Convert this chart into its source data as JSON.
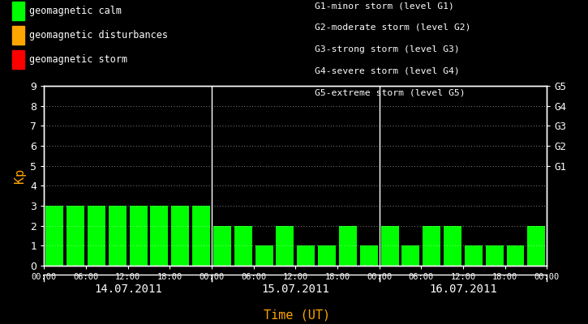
{
  "background_color": "#000000",
  "plot_bg_color": "#000000",
  "bar_color_calm": "#00ff00",
  "bar_color_disturbance": "#ffa500",
  "bar_color_storm": "#ff0000",
  "text_color": "#ffffff",
  "xlabel_color": "#ffa500",
  "ylabel_color": "#ffa500",
  "xlabel": "Time (UT)",
  "ylabel": "Kp",
  "ylim": [
    0,
    9
  ],
  "yticks": [
    0,
    1,
    2,
    3,
    4,
    5,
    6,
    7,
    8,
    9
  ],
  "days": [
    "14.07.2011",
    "15.07.2011",
    "16.07.2011"
  ],
  "kp_values": [
    [
      3,
      3,
      3,
      3,
      3,
      3,
      3,
      3
    ],
    [
      2,
      2,
      1,
      2,
      1,
      1,
      2,
      1
    ],
    [
      2,
      1,
      2,
      2,
      1,
      1,
      1,
      2
    ]
  ],
  "legend_items": [
    {
      "label": "geomagnetic calm",
      "color": "#00ff00"
    },
    {
      "label": "geomagnetic disturbances",
      "color": "#ffa500"
    },
    {
      "label": "geomagnetic storm",
      "color": "#ff0000"
    }
  ],
  "g_labels": [
    "G1-minor storm (level G1)",
    "G2-moderate storm (level G2)",
    "G3-strong storm (level G3)",
    "G4-severe storm (level G4)",
    "G5-extreme storm (level G5)"
  ],
  "right_ytick_labels": [
    "G1",
    "G2",
    "G3",
    "G4",
    "G5"
  ],
  "right_ytick_positions": [
    5,
    6,
    7,
    8,
    9
  ],
  "dot_grid_color": "#ffffff",
  "bar_width": 0.85,
  "font_size": 9,
  "day_dividers": [
    8,
    16
  ],
  "total_bars": 24
}
